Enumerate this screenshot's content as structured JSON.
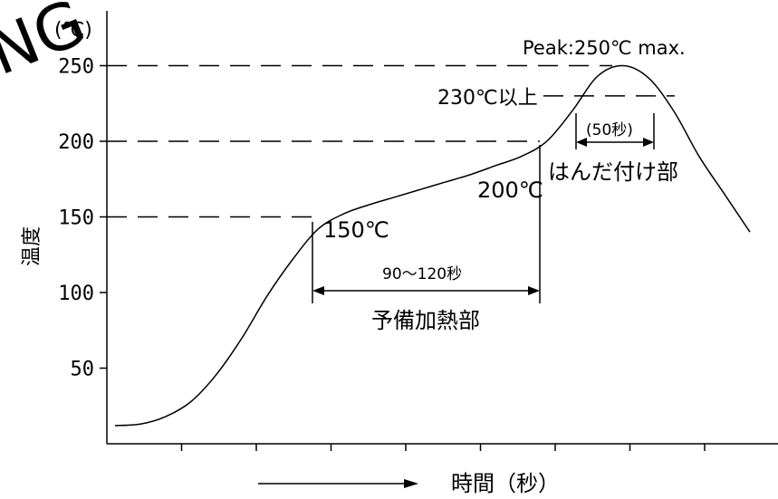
{
  "watermark": "NG",
  "chart_data": {
    "type": "line",
    "xlabel": "時間（秒）",
    "ylabel": "温度",
    "y_unit_label": "(℃)",
    "ylim": [
      0,
      260
    ],
    "yticks": [
      50,
      100,
      150,
      200,
      250
    ],
    "x_tick_count": 8,
    "grid": false,
    "reference_lines": [
      150,
      200,
      230,
      250
    ],
    "series": [
      {
        "x": [
          0,
          4,
          8,
          12,
          16,
          20,
          24,
          28,
          32,
          36,
          40,
          44,
          48,
          52,
          56,
          60,
          64,
          68,
          72,
          76,
          80,
          84,
          88,
          92,
          96,
          100
        ],
        "y": [
          12,
          13,
          18,
          28,
          46,
          70,
          98,
          122,
          142,
          152,
          158,
          163,
          168,
          173,
          178,
          184,
          190,
          200,
          220,
          243,
          250,
          242,
          220,
          190,
          165,
          140
        ]
      }
    ],
    "annotations": {
      "peak": "Peak:250℃ max.",
      "above230": "230℃以上",
      "soldering_time": "(50秒)",
      "soldering_zone": "はんだ付け部",
      "t150": "150℃",
      "t200": "200℃",
      "preheat_time": "90～120秒",
      "preheat_zone": "予備加熱部"
    }
  }
}
